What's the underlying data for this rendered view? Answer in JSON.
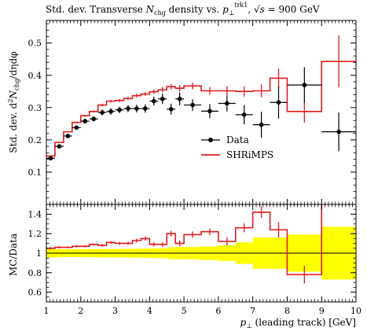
{
  "title": "Std. dev. Transverse N_chg density vs. p⊥^trk1, √s = 900 GeV",
  "title_parts": {
    "prefix": "Std. dev. Transverse ",
    "n": "N",
    "n_sub": "chg",
    "mid": " density vs. ",
    "p": "p",
    "p_sub": "⊥",
    "p_sup": "trk1",
    "sep": ", ",
    "sqrt": "√",
    "s": "s",
    "energy": " = 900 GeV"
  },
  "ylabel_main": "Std. dev. d²N_chg/dηdφ",
  "ylabel_main_parts": {
    "a": "Std. dev. d",
    "sup": "2",
    "n": "N",
    "sub": "chg",
    "b": "/dηdφ"
  },
  "ylabel_ratio": "MC/Data",
  "xlabel": "p⊥ (leading track) [GeV]",
  "xlabel_parts": {
    "p": "p",
    "sub": "⊥",
    "rest": " (leading track) [GeV]"
  },
  "legend": [
    {
      "label": "Data",
      "color": "#000000",
      "marker": "dot"
    },
    {
      "label": "SHRiMPS",
      "color": "#e41a1c",
      "marker": "line"
    }
  ],
  "colors": {
    "mc": "#e41a1c",
    "data": "#000000",
    "band": "#ffff00"
  },
  "chart_data": {
    "type": "line",
    "xlim": [
      1,
      10
    ],
    "ylim": [
      0,
      0.57
    ],
    "ratio_ylim": [
      0.5,
      1.5
    ],
    "legend_position": "center-right",
    "x_ticks": [
      "1",
      "2",
      "3",
      "4",
      "5",
      "6",
      "7",
      "8",
      "9",
      "10"
    ],
    "y_ticks_main": [
      {
        "v": 0.1,
        "label": "0.1"
      },
      {
        "v": 0.2,
        "label": "0.2"
      },
      {
        "v": 0.3,
        "label": "0.3"
      },
      {
        "v": 0.4,
        "label": "0.4"
      },
      {
        "v": 0.5,
        "label": "0.5"
      }
    ],
    "y_ticks_ratio": [
      {
        "v": 0.6,
        "label": "0.6"
      },
      {
        "v": 0.8,
        "label": "0.8"
      },
      {
        "v": 1.0,
        "label": "1"
      },
      {
        "v": 1.2,
        "label": "1.2"
      },
      {
        "v": 1.4,
        "label": "1.4"
      }
    ],
    "bins": [
      [
        1.0,
        1.25
      ],
      [
        1.25,
        1.5
      ],
      [
        1.5,
        1.75
      ],
      [
        1.75,
        2.0
      ],
      [
        2.0,
        2.25
      ],
      [
        2.25,
        2.5
      ],
      [
        2.5,
        2.75
      ],
      [
        2.75,
        3.0
      ],
      [
        3.0,
        3.25
      ],
      [
        3.25,
        3.5
      ],
      [
        3.5,
        3.75
      ],
      [
        3.75,
        4.0
      ],
      [
        4.0,
        4.25
      ],
      [
        4.25,
        4.5
      ],
      [
        4.5,
        4.75
      ],
      [
        4.75,
        5.0
      ],
      [
        5.0,
        5.5
      ],
      [
        5.5,
        6.0
      ],
      [
        6.0,
        6.5
      ],
      [
        6.5,
        7.0
      ],
      [
        7.0,
        7.5
      ],
      [
        7.5,
        8.0
      ],
      [
        8.0,
        9.0
      ],
      [
        9.0,
        10.0
      ]
    ],
    "series": [
      {
        "name": "Data",
        "y": [
          0.143,
          0.18,
          0.212,
          0.238,
          0.258,
          0.265,
          0.285,
          0.288,
          0.293,
          0.297,
          0.297,
          0.297,
          0.32,
          0.327,
          0.295,
          0.327,
          0.308,
          0.289,
          0.313,
          0.278,
          0.247,
          0.316,
          0.37,
          0.225
        ],
        "yerr": [
          0.006,
          0.006,
          0.006,
          0.006,
          0.007,
          0.008,
          0.009,
          0.01,
          0.01,
          0.011,
          0.012,
          0.013,
          0.014,
          0.016,
          0.017,
          0.02,
          0.018,
          0.022,
          0.025,
          0.03,
          0.04,
          0.05,
          0.055,
          0.06
        ]
      },
      {
        "name": "SHRiMPS",
        "y": [
          0.15,
          0.192,
          0.225,
          0.254,
          0.275,
          0.288,
          0.308,
          0.32,
          0.322,
          0.328,
          0.337,
          0.342,
          0.349,
          0.355,
          0.365,
          0.36,
          0.367,
          0.352,
          0.352,
          0.35,
          0.352,
          0.391,
          0.288,
          0.443
        ],
        "yerr": [
          0.002,
          0.002,
          0.002,
          0.003,
          0.003,
          0.003,
          0.004,
          0.004,
          0.005,
          0.005,
          0.006,
          0.006,
          0.007,
          0.008,
          0.009,
          0.01,
          0.01,
          0.012,
          0.014,
          0.016,
          0.02,
          0.03,
          0.035,
          0.08
        ]
      }
    ],
    "ratio": {
      "mc_over_data": [
        1.05,
        1.06,
        1.06,
        1.07,
        1.07,
        1.09,
        1.08,
        1.11,
        1.1,
        1.1,
        1.13,
        1.15,
        1.09,
        1.09,
        1.2,
        1.1,
        1.19,
        1.22,
        1.12,
        1.26,
        1.42,
        1.24,
        0.78,
        1.97
      ],
      "mc_err": [
        0.014,
        0.012,
        0.01,
        0.012,
        0.012,
        0.012,
        0.014,
        0.014,
        0.017,
        0.017,
        0.02,
        0.02,
        0.022,
        0.025,
        0.03,
        0.03,
        0.033,
        0.035,
        0.04,
        0.045,
        0.06,
        0.08,
        0.09,
        0.35
      ],
      "band_half": [
        0.045,
        0.04,
        0.04,
        0.04,
        0.04,
        0.042,
        0.042,
        0.043,
        0.043,
        0.045,
        0.045,
        0.047,
        0.05,
        0.05,
        0.06,
        0.062,
        0.063,
        0.07,
        0.08,
        0.11,
        0.16,
        0.16,
        0.19,
        0.27
      ]
    }
  }
}
